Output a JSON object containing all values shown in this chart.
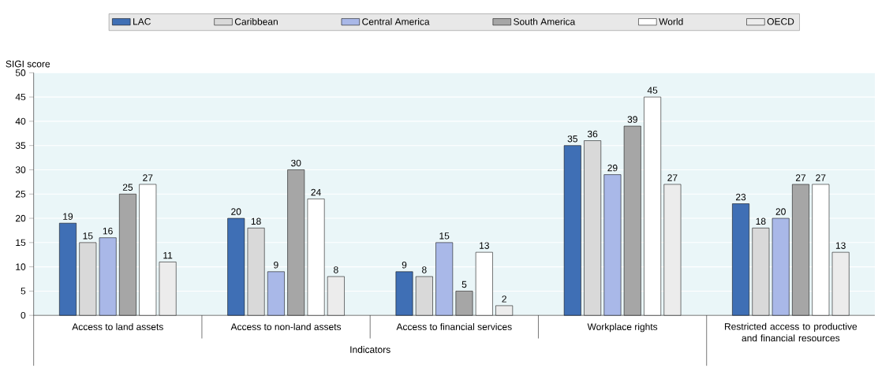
{
  "chart_data": {
    "type": "bar",
    "ylabel": "SIGI score",
    "categories": [
      "Access to land assets",
      "Access to non-land assets",
      "Access to financial services",
      "Workplace rights",
      null
    ],
    "series": [
      {
        "name": "LAC",
        "color": "#3f6fb5",
        "values": [
          19,
          20,
          9,
          35,
          23
        ]
      },
      {
        "name": "Caribbean",
        "color": "#d9d9d9",
        "values": [
          15,
          18,
          8,
          36,
          18
        ]
      },
      {
        "name": "Central America",
        "color": "#a9b8e8",
        "values": [
          16,
          9,
          15,
          29,
          20
        ]
      },
      {
        "name": "South America",
        "color": "#a6a6a6",
        "values": [
          25,
          30,
          5,
          39,
          27
        ]
      },
      {
        "name": "World",
        "color": "#ffffff",
        "values": [
          27,
          24,
          13,
          45,
          27
        ]
      },
      {
        "name": "OECD",
        "color": "#ececec",
        "values": [
          11,
          8,
          2,
          27,
          13
        ]
      }
    ],
    "ylim": [
      0,
      50
    ],
    "yticks": [
      0,
      5,
      10,
      15,
      20,
      25,
      30,
      35,
      40,
      45,
      50
    ],
    "grid": "y",
    "legend": "top",
    "data_labels": true,
    "annotations": [
      "Indicators",
      "Restricted access to productive and financial resources"
    ]
  }
}
